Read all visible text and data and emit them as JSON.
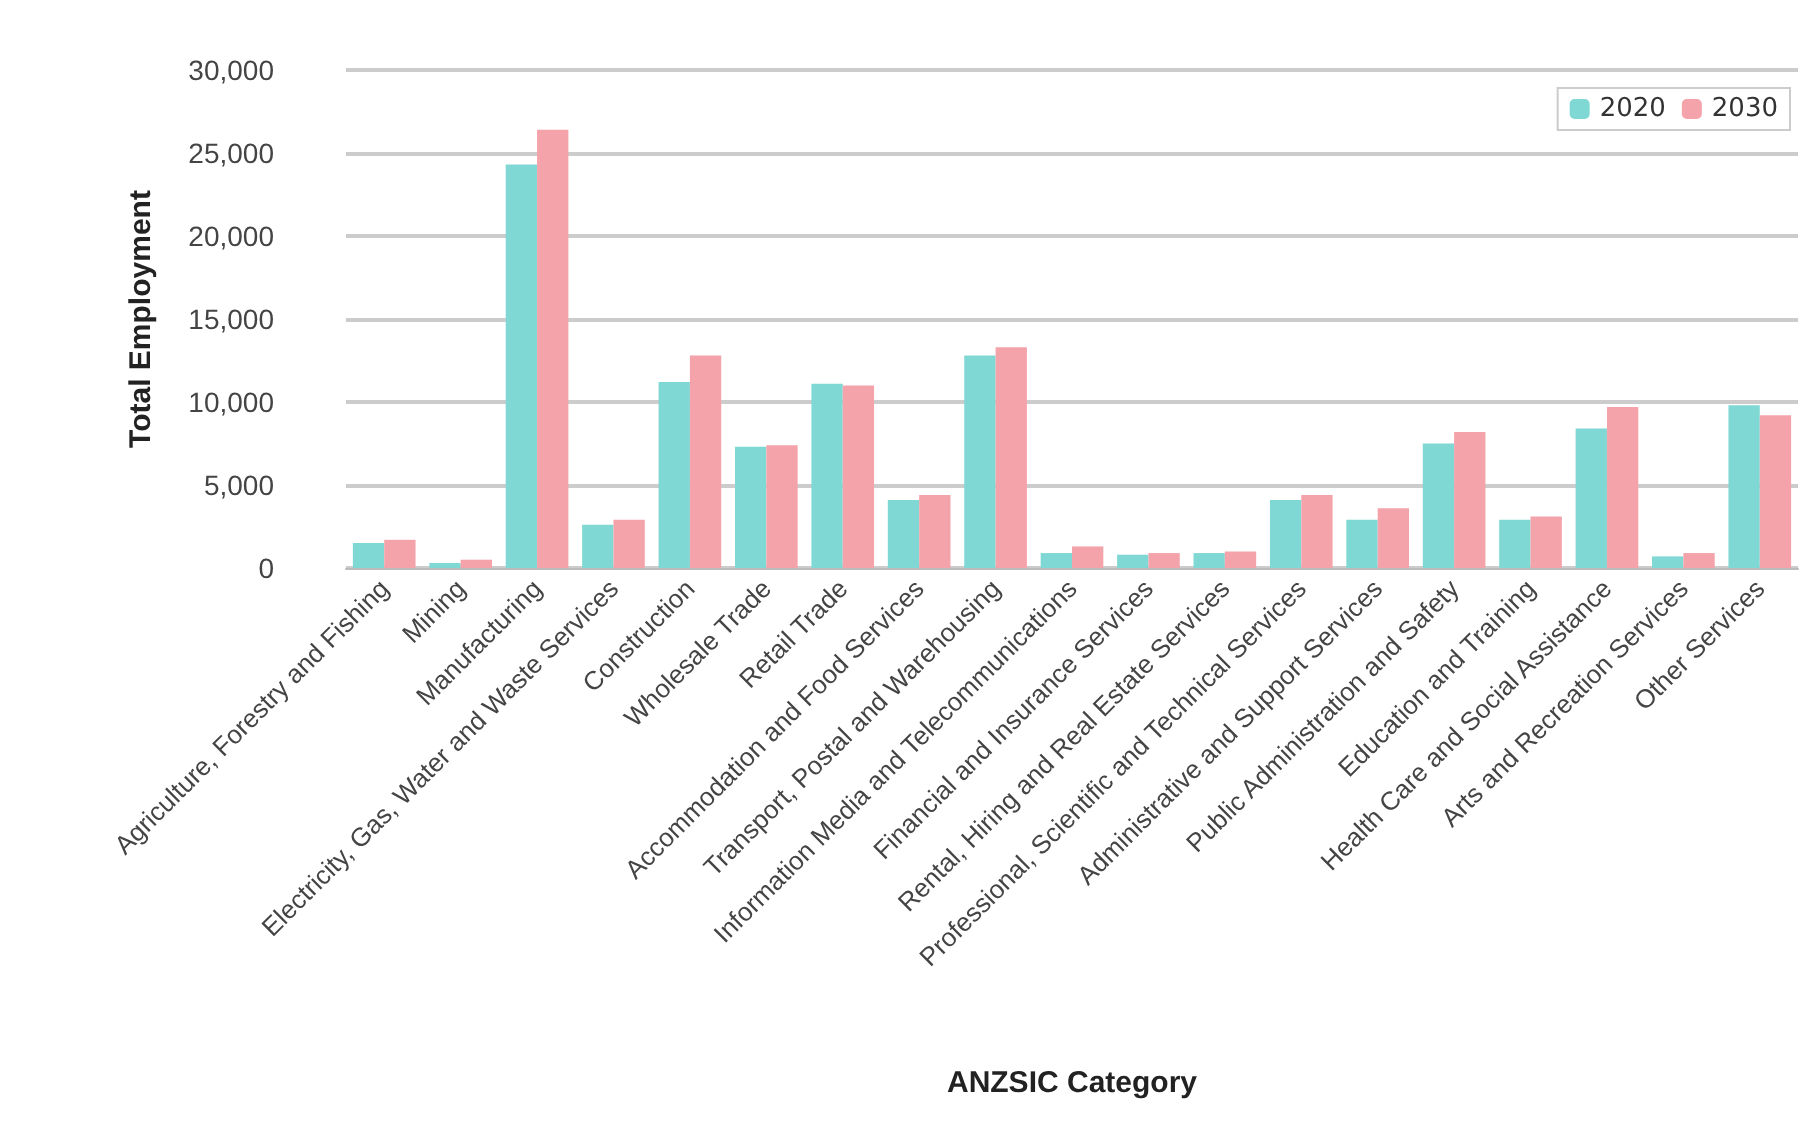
{
  "chart_data": {
    "type": "bar",
    "xlabel": "ANZSIC Category",
    "ylabel": "Total Employment",
    "categories": [
      "Agriculture, Forestry and Fishing",
      "Mining",
      "Manufacturing",
      "Electricity, Gas, Water and Waste Services",
      "Construction",
      "Wholesale Trade",
      "Retail Trade",
      "Accommodation and Food Services",
      "Transport, Postal and Warehousing",
      "Information Media and Telecommunications",
      "Financial and Insurance Services",
      "Rental, Hiring and Real Estate Services",
      "Professional, Scientific and Technical Services",
      "Administrative and Support Services",
      "Public Administration and Safety",
      "Education and Training",
      "Health Care and Social Assistance",
      "Arts and Recreation Services",
      "Other Services"
    ],
    "series": [
      {
        "name": "2020",
        "color": "#7fd8d4",
        "values": [
          1500,
          300,
          24300,
          2600,
          11200,
          7300,
          11100,
          4100,
          12800,
          900,
          800,
          900,
          4100,
          2900,
          7500,
          2900,
          8400,
          700,
          9800
        ]
      },
      {
        "name": "2030",
        "color": "#f4a3ab",
        "values": [
          1700,
          500,
          26400,
          2900,
          12800,
          7400,
          11000,
          4400,
          13300,
          1300,
          900,
          1000,
          4400,
          3600,
          8200,
          3100,
          9700,
          900,
          9200
        ]
      }
    ],
    "ylim": [
      0,
      30000
    ],
    "yticks": [
      0,
      {
        "value": 5000,
        "label": "5,000"
      },
      {
        "value": 10000,
        "label": "10,000"
      },
      {
        "value": 15000,
        "label": "15,000"
      },
      {
        "value": 20000,
        "label": "20,000"
      },
      {
        "value": 25000,
        "label": "25,000"
      },
      {
        "value": 30000,
        "label": "30,000"
      }
    ],
    "grid": "y",
    "legend": "top right"
  }
}
